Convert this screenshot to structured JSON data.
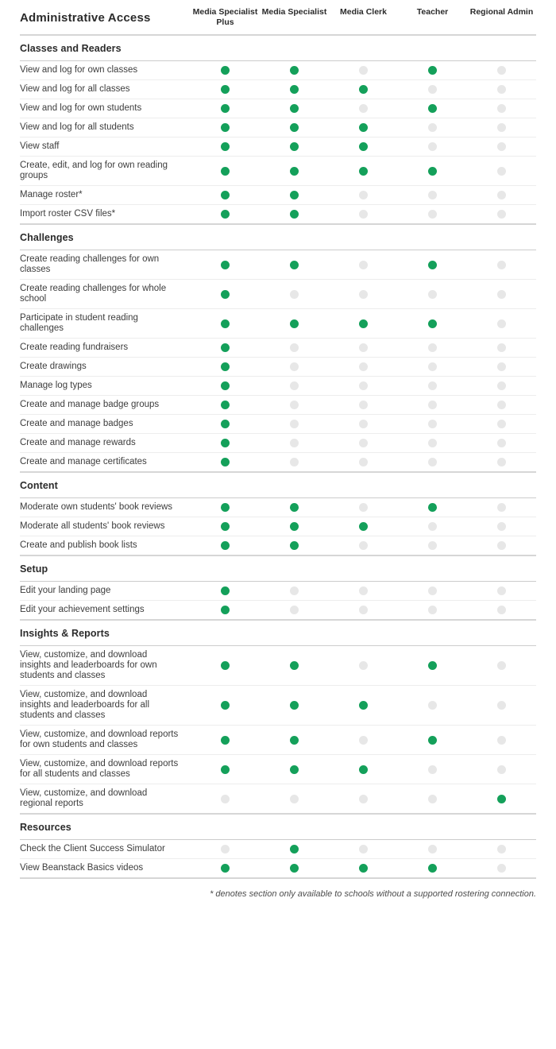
{
  "header": {
    "title": "Administrative Access",
    "columns": [
      "Media Specialist Plus",
      "Media Specialist",
      "Media Clerk",
      "Teacher",
      "Regional Admin"
    ]
  },
  "legend": {
    "enabled_color": "#14a05a",
    "disabled_color": "#e7e7e7",
    "enabled_meaning": "permission granted",
    "disabled_meaning": "permission not granted"
  },
  "sections": [
    {
      "title": "Classes and Readers",
      "rows": [
        {
          "label": "View and log for own classes",
          "access": [
            1,
            1,
            0,
            1,
            0
          ]
        },
        {
          "label": "View and log for all classes",
          "access": [
            1,
            1,
            1,
            0,
            0
          ]
        },
        {
          "label": "View and log for own students",
          "access": [
            1,
            1,
            0,
            1,
            0
          ]
        },
        {
          "label": "View and log for all students",
          "access": [
            1,
            1,
            1,
            0,
            0
          ]
        },
        {
          "label": "View staff",
          "access": [
            1,
            1,
            1,
            0,
            0
          ]
        },
        {
          "label": "Create, edit, and log for own reading groups",
          "access": [
            1,
            1,
            1,
            1,
            0
          ]
        },
        {
          "label": "Manage roster*",
          "access": [
            1,
            1,
            0,
            0,
            0
          ]
        },
        {
          "label": "Import roster CSV files*",
          "access": [
            1,
            1,
            0,
            0,
            0
          ]
        }
      ]
    },
    {
      "title": "Challenges",
      "rows": [
        {
          "label": "Create reading challenges for own classes",
          "access": [
            1,
            1,
            0,
            1,
            0
          ]
        },
        {
          "label": "Create reading challenges for whole school",
          "access": [
            1,
            0,
            0,
            0,
            0
          ]
        },
        {
          "label": "Participate in student reading challenges",
          "access": [
            1,
            1,
            1,
            1,
            0
          ]
        },
        {
          "label": "Create reading fundraisers",
          "access": [
            1,
            0,
            0,
            0,
            0
          ]
        },
        {
          "label": "Create drawings",
          "access": [
            1,
            0,
            0,
            0,
            0
          ]
        },
        {
          "label": "Manage log types",
          "access": [
            1,
            0,
            0,
            0,
            0
          ]
        },
        {
          "label": "Create and manage badge groups",
          "access": [
            1,
            0,
            0,
            0,
            0
          ]
        },
        {
          "label": "Create and manage badges",
          "access": [
            1,
            0,
            0,
            0,
            0
          ]
        },
        {
          "label": "Create and manage rewards",
          "access": [
            1,
            0,
            0,
            0,
            0
          ]
        },
        {
          "label": "Create and manage certificates",
          "access": [
            1,
            0,
            0,
            0,
            0
          ]
        }
      ]
    },
    {
      "title": "Content",
      "rows": [
        {
          "label": "Moderate own students' book reviews",
          "access": [
            1,
            1,
            0,
            1,
            0
          ]
        },
        {
          "label": "Moderate all students' book reviews",
          "access": [
            1,
            1,
            1,
            0,
            0
          ]
        },
        {
          "label": "Create and publish book lists",
          "access": [
            1,
            1,
            0,
            0,
            0
          ]
        }
      ]
    },
    {
      "title": "Setup",
      "rows": [
        {
          "label": "Edit your landing page",
          "access": [
            1,
            0,
            0,
            0,
            0
          ]
        },
        {
          "label": "Edit your achievement settings",
          "access": [
            1,
            0,
            0,
            0,
            0
          ]
        }
      ]
    },
    {
      "title": "Insights & Reports",
      "rows": [
        {
          "label": "View, customize, and download insights and leaderboards for own students and classes",
          "access": [
            1,
            1,
            0,
            1,
            0
          ]
        },
        {
          "label": "View, customize, and download insights and leaderboards for all students and classes",
          "access": [
            1,
            1,
            1,
            0,
            0
          ]
        },
        {
          "label": "View, customize, and download reports for own students and classes",
          "access": [
            1,
            1,
            0,
            1,
            0
          ]
        },
        {
          "label": "View, customize, and download reports for all students and classes",
          "access": [
            1,
            1,
            1,
            0,
            0
          ]
        },
        {
          "label": "View, customize, and download regional reports",
          "access": [
            0,
            0,
            0,
            0,
            1
          ]
        }
      ]
    },
    {
      "title": "Resources",
      "rows": [
        {
          "label": "Check the Client Success Simulator",
          "access": [
            0,
            1,
            0,
            0,
            0
          ]
        },
        {
          "label": "View Beanstack Basics videos",
          "access": [
            1,
            1,
            1,
            1,
            0
          ]
        }
      ]
    }
  ],
  "footnote": "* denotes section only available to schools without a supported rostering connection."
}
